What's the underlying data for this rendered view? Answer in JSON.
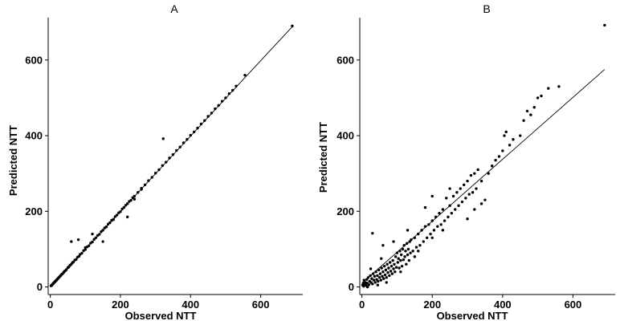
{
  "chart_data": [
    {
      "type": "scatter",
      "title": "A",
      "xlabel": "Observed NTT",
      "ylabel": "Predicted NTT",
      "xlim": [
        -6,
        720
      ],
      "ylim": [
        -20,
        712
      ],
      "xticks": [
        "0",
        "200",
        "400",
        "600"
      ],
      "yticks": [
        "0",
        "200",
        "400",
        "600"
      ],
      "xtick_values": [
        0,
        200,
        400,
        600
      ],
      "ytick_values": [
        0,
        200,
        400,
        600
      ],
      "grid": false,
      "fit_line": {
        "x": [
          0,
          690
        ],
        "y": [
          0,
          688
        ]
      },
      "points": [
        [
          2,
          3
        ],
        [
          4,
          4
        ],
        [
          5,
          6
        ],
        [
          6,
          7
        ],
        [
          8,
          8
        ],
        [
          9,
          10
        ],
        [
          10,
          11
        ],
        [
          12,
          12
        ],
        [
          13,
          14
        ],
        [
          15,
          15
        ],
        [
          16,
          17
        ],
        [
          18,
          18
        ],
        [
          20,
          21
        ],
        [
          22,
          22
        ],
        [
          24,
          25
        ],
        [
          26,
          26
        ],
        [
          28,
          29
        ],
        [
          30,
          30
        ],
        [
          32,
          33
        ],
        [
          35,
          35
        ],
        [
          38,
          38
        ],
        [
          40,
          41
        ],
        [
          43,
          43
        ],
        [
          46,
          46
        ],
        [
          50,
          51
        ],
        [
          53,
          53
        ],
        [
          56,
          57
        ],
        [
          60,
          60
        ],
        [
          63,
          64
        ],
        [
          66,
          66
        ],
        [
          70,
          71
        ],
        [
          74,
          73
        ],
        [
          78,
          79
        ],
        [
          82,
          81
        ],
        [
          85,
          86
        ],
        [
          90,
          89
        ],
        [
          95,
          96
        ],
        [
          100,
          99
        ],
        [
          105,
          106
        ],
        [
          110,
          109
        ],
        [
          115,
          116
        ],
        [
          120,
          119
        ],
        [
          125,
          126
        ],
        [
          130,
          130
        ],
        [
          135,
          136
        ],
        [
          140,
          139
        ],
        [
          145,
          146
        ],
        [
          150,
          150
        ],
        [
          155,
          156
        ],
        [
          160,
          159
        ],
        [
          165,
          166
        ],
        [
          170,
          170
        ],
        [
          175,
          176
        ],
        [
          180,
          179
        ],
        [
          185,
          186
        ],
        [
          190,
          190
        ],
        [
          195,
          196
        ],
        [
          200,
          199
        ],
        [
          205,
          206
        ],
        [
          210,
          210
        ],
        [
          215,
          216
        ],
        [
          220,
          220
        ],
        [
          225,
          226
        ],
        [
          230,
          229
        ],
        [
          235,
          236
        ],
        [
          240,
          240
        ],
        [
          250,
          250
        ],
        [
          260,
          261
        ],
        [
          270,
          270
        ],
        [
          280,
          281
        ],
        [
          290,
          290
        ],
        [
          300,
          301
        ],
        [
          310,
          310
        ],
        [
          320,
          321
        ],
        [
          330,
          330
        ],
        [
          340,
          341
        ],
        [
          350,
          350
        ],
        [
          360,
          361
        ],
        [
          370,
          370
        ],
        [
          380,
          381
        ],
        [
          390,
          390
        ],
        [
          400,
          401
        ],
        [
          410,
          410
        ],
        [
          420,
          420
        ],
        [
          430,
          431
        ],
        [
          440,
          440
        ],
        [
          450,
          451
        ],
        [
          460,
          460
        ],
        [
          470,
          471
        ],
        [
          480,
          480
        ],
        [
          490,
          491
        ],
        [
          500,
          500
        ],
        [
          510,
          511
        ],
        [
          520,
          520
        ],
        [
          530,
          531
        ],
        [
          555,
          560
        ],
        [
          690,
          690
        ],
        [
          60,
          120
        ],
        [
          80,
          125
        ],
        [
          120,
          140
        ],
        [
          150,
          120
        ],
        [
          220,
          185
        ],
        [
          322,
          392
        ],
        [
          240,
          232
        ],
        [
          260,
          258
        ],
        [
          180,
          178
        ],
        [
          100,
          104
        ]
      ]
    },
    {
      "type": "scatter",
      "title": "B",
      "xlabel": "Observed NTT",
      "ylabel": "Predicted NTT",
      "xlim": [
        -6,
        720
      ],
      "ylim": [
        -20,
        712
      ],
      "xticks": [
        "0",
        "200",
        "400",
        "600"
      ],
      "yticks": [
        "0",
        "200",
        "400",
        "600"
      ],
      "xtick_values": [
        0,
        200,
        400,
        600
      ],
      "ytick_values": [
        0,
        200,
        400,
        600
      ],
      "grid": false,
      "fit_line": {
        "x": [
          0,
          690
        ],
        "y": [
          10,
          575
        ]
      },
      "points": [
        [
          2,
          5
        ],
        [
          4,
          10
        ],
        [
          5,
          2
        ],
        [
          6,
          18
        ],
        [
          8,
          8
        ],
        [
          10,
          12
        ],
        [
          12,
          4
        ],
        [
          14,
          20
        ],
        [
          15,
          10
        ],
        [
          18,
          25
        ],
        [
          20,
          6
        ],
        [
          22,
          15
        ],
        [
          24,
          30
        ],
        [
          26,
          12
        ],
        [
          28,
          22
        ],
        [
          30,
          8
        ],
        [
          32,
          35
        ],
        [
          34,
          18
        ],
        [
          36,
          28
        ],
        [
          38,
          12
        ],
        [
          40,
          40
        ],
        [
          42,
          20
        ],
        [
          44,
          30
        ],
        [
          46,
          15
        ],
        [
          48,
          45
        ],
        [
          50,
          25
        ],
        [
          52,
          35
        ],
        [
          54,
          18
        ],
        [
          56,
          50
        ],
        [
          58,
          28
        ],
        [
          60,
          40
        ],
        [
          62,
          22
        ],
        [
          64,
          55
        ],
        [
          66,
          32
        ],
        [
          68,
          45
        ],
        [
          70,
          25
        ],
        [
          72,
          60
        ],
        [
          74,
          38
        ],
        [
          76,
          50
        ],
        [
          78,
          30
        ],
        [
          80,
          65
        ],
        [
          82,
          42
        ],
        [
          84,
          55
        ],
        [
          86,
          35
        ],
        [
          88,
          70
        ],
        [
          90,
          48
        ],
        [
          92,
          60
        ],
        [
          94,
          40
        ],
        [
          96,
          80
        ],
        [
          98,
          52
        ],
        [
          100,
          90
        ],
        [
          102,
          65
        ],
        [
          104,
          75
        ],
        [
          106,
          50
        ],
        [
          108,
          95
        ],
        [
          110,
          70
        ],
        [
          112,
          85
        ],
        [
          114,
          55
        ],
        [
          116,
          100
        ],
        [
          118,
          72
        ],
        [
          120,
          110
        ],
        [
          122,
          80
        ],
        [
          124,
          95
        ],
        [
          126,
          60
        ],
        [
          128,
          115
        ],
        [
          130,
          85
        ],
        [
          132,
          100
        ],
        [
          134,
          70
        ],
        [
          136,
          120
        ],
        [
          138,
          90
        ],
        [
          140,
          125
        ],
        [
          145,
          95
        ],
        [
          150,
          130
        ],
        [
          155,
          105
        ],
        [
          160,
          140
        ],
        [
          165,
          110
        ],
        [
          170,
          150
        ],
        [
          175,
          120
        ],
        [
          180,
          160
        ],
        [
          185,
          130
        ],
        [
          190,
          165
        ],
        [
          195,
          140
        ],
        [
          200,
          175
        ],
        [
          205,
          150
        ],
        [
          210,
          185
        ],
        [
          215,
          160
        ],
        [
          220,
          195
        ],
        [
          225,
          165
        ],
        [
          230,
          205
        ],
        [
          235,
          175
        ],
        [
          240,
          235
        ],
        [
          245,
          185
        ],
        [
          250,
          215
        ],
        [
          255,
          195
        ],
        [
          260,
          240
        ],
        [
          265,
          205
        ],
        [
          270,
          250
        ],
        [
          275,
          215
        ],
        [
          280,
          260
        ],
        [
          285,
          225
        ],
        [
          290,
          270
        ],
        [
          295,
          235
        ],
        [
          300,
          280
        ],
        [
          305,
          245
        ],
        [
          310,
          295
        ],
        [
          315,
          250
        ],
        [
          320,
          300
        ],
        [
          325,
          260
        ],
        [
          330,
          310
        ],
        [
          340,
          280
        ],
        [
          350,
          230
        ],
        [
          360,
          300
        ],
        [
          370,
          320
        ],
        [
          380,
          335
        ],
        [
          390,
          345
        ],
        [
          400,
          360
        ],
        [
          410,
          410
        ],
        [
          405,
          400
        ],
        [
          420,
          375
        ],
        [
          430,
          390
        ],
        [
          450,
          400
        ],
        [
          460,
          440
        ],
        [
          470,
          465
        ],
        [
          480,
          455
        ],
        [
          490,
          475
        ],
        [
          500,
          500
        ],
        [
          510,
          505
        ],
        [
          530,
          525
        ],
        [
          560,
          530
        ],
        [
          690,
          692
        ],
        [
          30,
          142
        ],
        [
          60,
          110
        ],
        [
          90,
          120
        ],
        [
          130,
          150
        ],
        [
          160,
          95
        ],
        [
          200,
          130
        ],
        [
          250,
          260
        ],
        [
          300,
          180
        ],
        [
          320,
          205
        ],
        [
          340,
          220
        ],
        [
          200,
          240
        ],
        [
          230,
          150
        ],
        [
          180,
          210
        ],
        [
          150,
          80
        ],
        [
          110,
          40
        ],
        [
          70,
          12
        ],
        [
          45,
          5
        ],
        [
          16,
          0
        ],
        [
          25,
          48
        ],
        [
          55,
          75
        ]
      ]
    }
  ]
}
